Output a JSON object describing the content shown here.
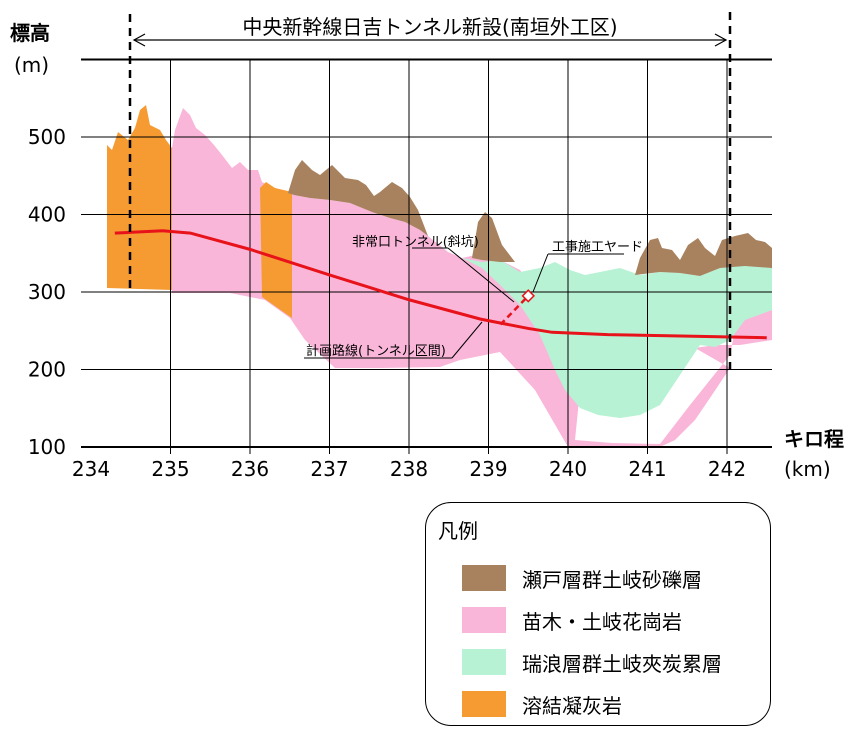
{
  "title": "中央新幹線日吉トンネル新設(南垣外工区)",
  "y_axis": {
    "label_top": "標高",
    "label_unit": "(m)",
    "ticks": [
      "100",
      "200",
      "300",
      "400",
      "500"
    ]
  },
  "x_axis": {
    "label": "キロ程",
    "unit": "(km)",
    "ticks": [
      "234",
      "235",
      "236",
      "237",
      "238",
      "239",
      "240",
      "241",
      "242"
    ]
  },
  "annotations": {
    "inclined_shaft": "非常口トンネル(斜坑)",
    "construction_yard": "工事施工ヤード",
    "planned_route": "計画路線(トンネル区間)"
  },
  "legend": {
    "title": "凡例",
    "items": [
      {
        "label": "瀬戸層群土岐砂礫層",
        "color": "#A8825F"
      },
      {
        "label": "苗木・土岐花崗岩",
        "color": "#F9B6D9"
      },
      {
        "label": "瑞浪層群土岐夾炭累層",
        "color": "#B8F2D4"
      },
      {
        "label": "溶結凝灰岩",
        "color": "#F59B32"
      }
    ]
  },
  "colors": {
    "route": "#E8121A",
    "grid": "#000000"
  },
  "chart_data": {
    "type": "area",
    "title": "中央新幹線日吉トンネル新設(南垣外工区)",
    "xlabel": "キロ程(km)",
    "ylabel": "標高(m)",
    "xlim": [
      234,
      242.5
    ],
    "ylim": [
      100,
      600
    ],
    "section_start_km": 234.5,
    "section_end_km": 242.0,
    "planned_route": {
      "x": [
        234.3,
        234.9,
        235.25,
        236.0,
        237.0,
        238.0,
        238.9,
        239.5,
        239.8,
        240.5,
        241.5,
        242.5
      ],
      "y": [
        376,
        379,
        376,
        355,
        322,
        290,
        265,
        253,
        248,
        245,
        243,
        241
      ]
    },
    "inclined_shaft": {
      "x": [
        239.15,
        239.5
      ],
      "y": [
        258,
        295
      ]
    },
    "construction_yard": {
      "x": 239.5,
      "y": 295
    }
  }
}
